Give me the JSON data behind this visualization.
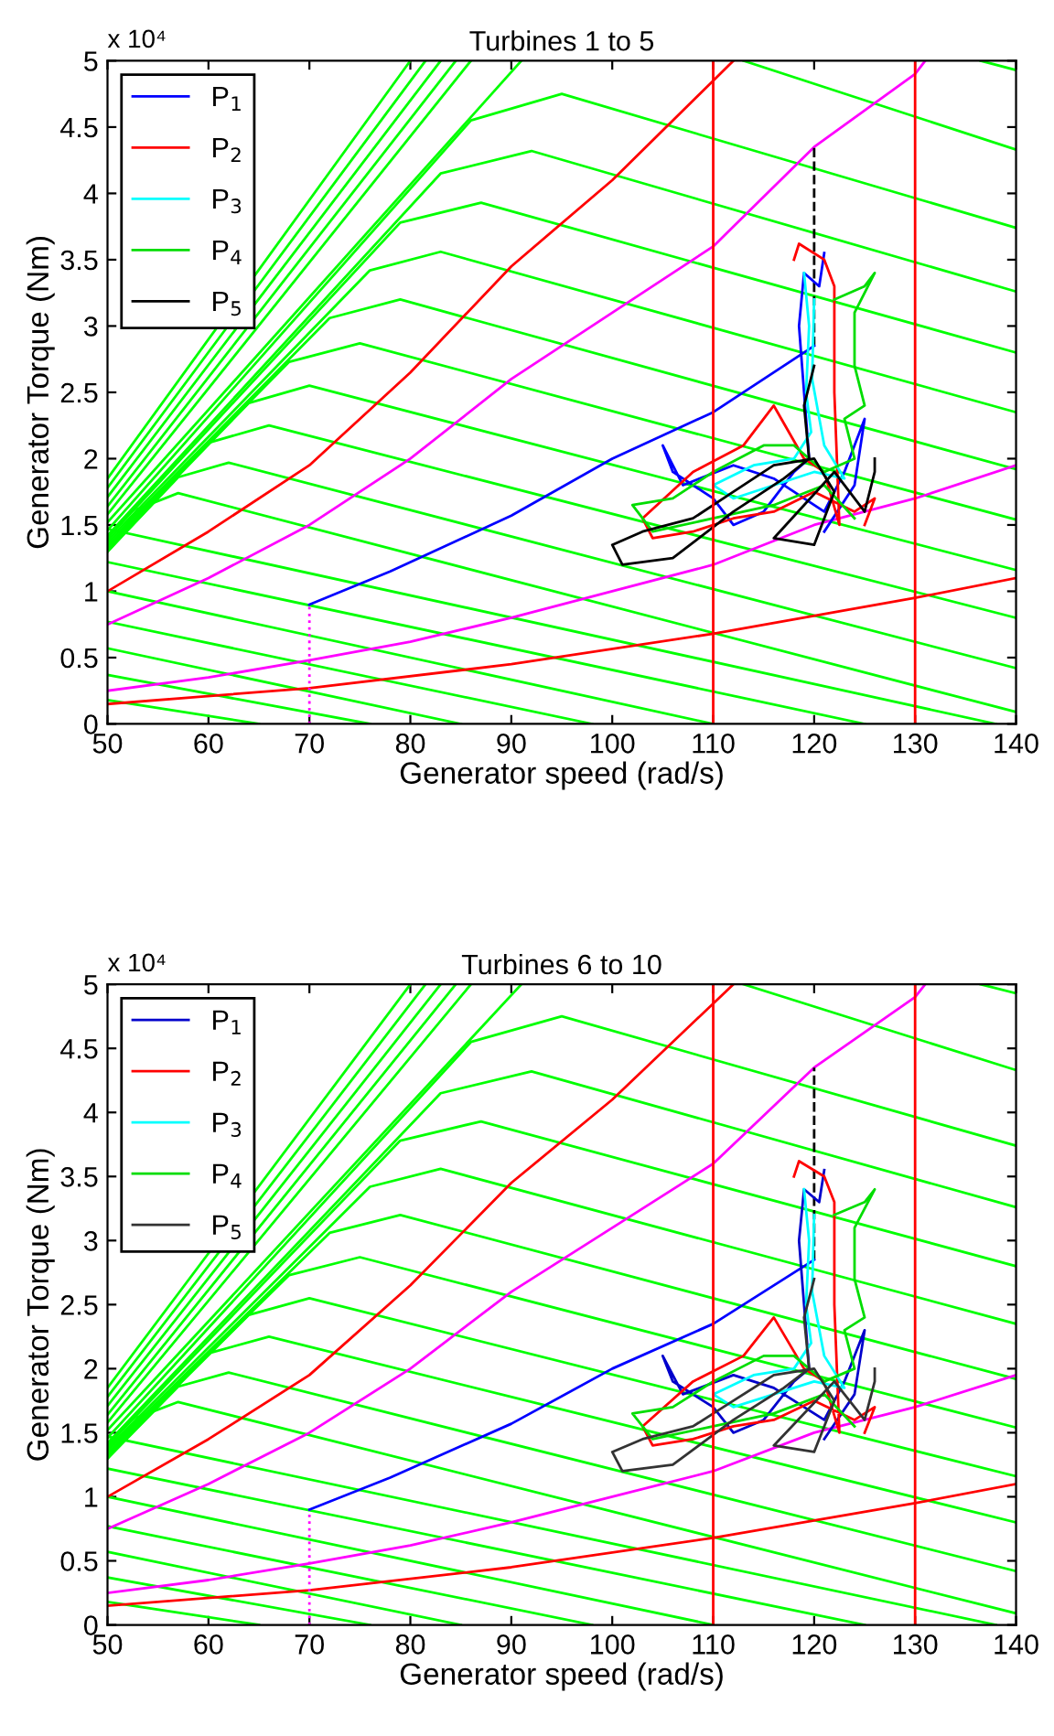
{
  "chart_data": [
    {
      "type": "line",
      "title": "Turbines 1 to 5",
      "xlabel": "Generator speed (rad/s)",
      "ylabel": "Generator Torque (Nm)",
      "annotations": [
        "x 10⁴"
      ],
      "xlim": [
        50,
        140
      ],
      "ylim": [
        0,
        5
      ],
      "xticks": [
        50,
        60,
        70,
        80,
        90,
        100,
        110,
        120,
        130,
        140
      ],
      "yticks": [
        0,
        0.5,
        1,
        1.5,
        2,
        2.5,
        3,
        3.5,
        4,
        4.5,
        5
      ],
      "grid": false,
      "legend": "top left",
      "marker": "none",
      "ref_lines": [
        {
          "axis": "x",
          "value": 110,
          "color": "#ff0000"
        },
        {
          "axis": "x",
          "value": 130,
          "color": "#ff0000"
        }
      ],
      "series": [
        {
          "color": "#00ff00",
          "x": [
            50,
            80
          ],
          "values": [
            1.85,
            5
          ]
        },
        {
          "color": "#00ff00",
          "x": [
            50,
            81.5
          ],
          "values": [
            1.78,
            5
          ]
        },
        {
          "color": "#00ff00",
          "x": [
            50,
            83
          ],
          "values": [
            1.71,
            5
          ]
        },
        {
          "color": "#00ff00",
          "x": [
            50,
            84.5
          ],
          "values": [
            1.64,
            5
          ]
        },
        {
          "color": "#00ff00",
          "x": [
            50,
            86
          ],
          "values": [
            1.58,
            5
          ]
        },
        {
          "color": "#00ff00",
          "x": [
            136.5,
            140
          ],
          "values": [
            5,
            4.93
          ]
        },
        {
          "color": "#00ff00",
          "x": [
            50,
            91
          ],
          "values": [
            1.52,
            5
          ]
        },
        {
          "color": "#00ff00",
          "x": [
            113,
            140
          ],
          "values": [
            5,
            4.33
          ]
        },
        {
          "color": "#00ff00",
          "x": [
            50,
            86,
            95,
            140
          ],
          "values": [
            1.46,
            4.55,
            4.75,
            3.74
          ]
        },
        {
          "color": "#00ff00",
          "x": [
            50,
            83,
            92,
            140
          ],
          "values": [
            1.42,
            4.15,
            4.32,
            3.26
          ]
        },
        {
          "color": "#00ff00",
          "x": [
            50,
            79,
            87,
            140
          ],
          "values": [
            1.4,
            3.78,
            3.93,
            2.8
          ]
        },
        {
          "color": "#00ff00",
          "x": [
            50,
            76,
            83,
            140
          ],
          "values": [
            1.38,
            3.42,
            3.56,
            2.35
          ]
        },
        {
          "color": "#00ff00",
          "x": [
            50,
            72,
            79,
            140
          ],
          "values": [
            1.36,
            3.06,
            3.2,
            1.92
          ]
        },
        {
          "color": "#00ff00",
          "x": [
            50,
            68,
            75,
            140
          ],
          "values": [
            1.34,
            2.73,
            2.87,
            1.54
          ]
        },
        {
          "color": "#00ff00",
          "x": [
            50,
            64,
            70,
            140
          ],
          "values": [
            1.32,
            2.42,
            2.55,
            1.16
          ]
        },
        {
          "color": "#00ff00",
          "x": [
            50,
            60,
            66,
            140
          ],
          "values": [
            1.3,
            2.12,
            2.25,
            0.8
          ]
        },
        {
          "color": "#00ff00",
          "x": [
            50,
            57,
            62,
            140
          ],
          "values": [
            1.3,
            1.86,
            1.97,
            0.42
          ]
        },
        {
          "color": "#00ff00",
          "x": [
            50,
            53,
            57,
            140
          ],
          "values": [
            1.3,
            1.62,
            1.74,
            0.09
          ]
        },
        {
          "color": "#00ff00",
          "x": [
            50,
            138
          ],
          "values": [
            1.47,
            0
          ]
        },
        {
          "color": "#00ff00",
          "x": [
            50,
            125
          ],
          "values": [
            1.22,
            0
          ]
        },
        {
          "color": "#00ff00",
          "x": [
            50,
            110
          ],
          "values": [
            1.0,
            0
          ]
        },
        {
          "color": "#00ff00",
          "x": [
            50,
            98
          ],
          "values": [
            0.77,
            0
          ]
        },
        {
          "color": "#00ff00",
          "x": [
            50,
            85
          ],
          "values": [
            0.57,
            0
          ]
        },
        {
          "color": "#00ff00",
          "x": [
            50,
            76
          ],
          "values": [
            0.37,
            0
          ]
        },
        {
          "color": "#00ff00",
          "x": [
            50,
            65
          ],
          "values": [
            0.18,
            0
          ]
        },
        {
          "color": "#ff0000",
          "x": [
            50,
            60,
            70,
            80,
            90,
            100,
            110,
            112
          ],
          "values": [
            1.0,
            1.45,
            1.95,
            2.65,
            3.45,
            4.1,
            4.85,
            5.0
          ]
        },
        {
          "color": "#ff0000",
          "x": [
            50,
            70,
            90,
            110,
            130,
            140
          ],
          "values": [
            0.15,
            0.27,
            0.45,
            0.68,
            0.95,
            1.1
          ]
        },
        {
          "color": "#ff00ff",
          "x": [
            50,
            60,
            70,
            80,
            90,
            100,
            110,
            120,
            130,
            131
          ],
          "values": [
            0.75,
            1.1,
            1.5,
            2.0,
            2.6,
            3.1,
            3.6,
            4.35,
            4.9,
            5.0
          ]
        },
        {
          "color": "#ff00ff",
          "x": [
            50,
            60,
            70,
            80,
            90,
            100,
            110,
            120,
            130,
            140
          ],
          "values": [
            0.25,
            0.35,
            0.48,
            0.62,
            0.8,
            1.0,
            1.2,
            1.5,
            1.7,
            1.95
          ]
        },
        {
          "color": "#ff00ff",
          "x": [
            70,
            70
          ],
          "values": [
            0,
            0.9
          ],
          "line_style": "dotted"
        },
        {
          "color": "#000000",
          "x": [
            120,
            120
          ],
          "values": [
            2.85,
            4.35
          ],
          "line_style": "dashed"
        },
        {
          "color": "#0000ff",
          "x": [
            70,
            78,
            90,
            100,
            110,
            120
          ],
          "values": [
            0.9,
            1.15,
            1.57,
            2.0,
            2.35,
            2.85
          ]
        },
        {
          "name": "P$_{1}$",
          "color": "#0000ff",
          "x": [
            121,
            120.5,
            119,
            118.5,
            119,
            119.5,
            118,
            115,
            112,
            110,
            106,
            105,
            107,
            112,
            116,
            121,
            123,
            125,
            124,
            121
          ],
          "values": [
            3.55,
            3.3,
            3.4,
            3.0,
            2.5,
            2.0,
            1.9,
            1.6,
            1.5,
            1.7,
            1.9,
            2.1,
            1.8,
            1.95,
            1.85,
            1.6,
            1.9,
            2.3,
            1.8,
            1.45
          ]
        },
        {
          "name": "P$_{2}$",
          "color": "#ff0000",
          "x": [
            118,
            118.5,
            121,
            122,
            122,
            122.5,
            121,
            119,
            116,
            113,
            108,
            103,
            104,
            108,
            112,
            116,
            120,
            124,
            126,
            125
          ],
          "values": [
            3.5,
            3.62,
            3.5,
            3.3,
            2.5,
            1.5,
            1.9,
            2.0,
            2.4,
            2.1,
            1.9,
            1.55,
            1.4,
            1.45,
            1.55,
            1.6,
            1.75,
            1.6,
            1.7,
            1.5
          ]
        },
        {
          "name": "P$_{3}$",
          "color": "#00ffff",
          "x": [
            119,
            119.5,
            119.2,
            119.7,
            118,
            114,
            110,
            112,
            116,
            120,
            123,
            121,
            119.8,
            120
          ],
          "values": [
            3.4,
            3.0,
            2.5,
            2.2,
            2.0,
            1.95,
            1.8,
            1.7,
            1.8,
            1.9,
            1.85,
            2.1,
            2.6,
            3.2
          ]
        },
        {
          "name": "P$_{4}$",
          "color": "#00dd00",
          "x": [
            122,
            125,
            126,
            124,
            124,
            125,
            123,
            124,
            121,
            118,
            115,
            110,
            106,
            102,
            104,
            110,
            116,
            121,
            124
          ],
          "values": [
            3.2,
            3.3,
            3.4,
            3.1,
            2.7,
            2.4,
            2.3,
            2.0,
            1.9,
            2.1,
            2.1,
            1.9,
            1.7,
            1.65,
            1.45,
            1.55,
            1.65,
            1.8,
            1.55
          ]
        },
        {
          "name": "P$_{5}$",
          "color": "#000000",
          "x": [
            120,
            119,
            119.5,
            117,
            112,
            106,
            101,
            100,
            103,
            108,
            112,
            116,
            120,
            122,
            120,
            116,
            122,
            125,
            126,
            126
          ],
          "values": [
            2.7,
            2.4,
            2.0,
            1.85,
            1.6,
            1.25,
            1.2,
            1.35,
            1.45,
            1.55,
            1.75,
            1.95,
            2.0,
            1.75,
            1.35,
            1.4,
            1.9,
            1.6,
            1.9,
            2.0
          ]
        }
      ]
    },
    {
      "type": "line",
      "title": "Turbines 6 to 10",
      "xlabel": "Generator speed (rad/s)",
      "ylabel": "Generator Torque (Nm)",
      "annotations": [
        "x 10⁴"
      ],
      "xlim": [
        50,
        140
      ],
      "ylim": [
        0,
        5
      ],
      "xticks": [
        50,
        60,
        70,
        80,
        90,
        100,
        110,
        120,
        130,
        140
      ],
      "yticks": [
        0,
        0.5,
        1,
        1.5,
        2,
        2.5,
        3,
        3.5,
        4,
        4.5,
        5
      ],
      "grid": false,
      "legend": "top left",
      "marker": "none",
      "ref_lines": [
        {
          "axis": "x",
          "value": 110,
          "color": "#ff0000"
        },
        {
          "axis": "x",
          "value": 130,
          "color": "#ff0000"
        }
      ],
      "series": [
        {
          "color": "#00ff00",
          "x": [
            50,
            80
          ],
          "values": [
            1.85,
            5
          ]
        },
        {
          "color": "#00ff00",
          "x": [
            50,
            81.5
          ],
          "values": [
            1.78,
            5
          ]
        },
        {
          "color": "#00ff00",
          "x": [
            50,
            83
          ],
          "values": [
            1.71,
            5
          ]
        },
        {
          "color": "#00ff00",
          "x": [
            50,
            84.5
          ],
          "values": [
            1.64,
            5
          ]
        },
        {
          "color": "#00ff00",
          "x": [
            50,
            86
          ],
          "values": [
            1.58,
            5
          ]
        },
        {
          "color": "#00ff00",
          "x": [
            136.5,
            140
          ],
          "values": [
            5,
            4.93
          ]
        },
        {
          "color": "#00ff00",
          "x": [
            50,
            91
          ],
          "values": [
            1.52,
            5
          ]
        },
        {
          "color": "#00ff00",
          "x": [
            113,
            140
          ],
          "values": [
            5,
            4.33
          ]
        },
        {
          "color": "#00ff00",
          "x": [
            50,
            86,
            95,
            140
          ],
          "values": [
            1.46,
            4.55,
            4.75,
            3.74
          ]
        },
        {
          "color": "#00ff00",
          "x": [
            50,
            83,
            92,
            140
          ],
          "values": [
            1.42,
            4.15,
            4.32,
            3.26
          ]
        },
        {
          "color": "#00ff00",
          "x": [
            50,
            79,
            87,
            140
          ],
          "values": [
            1.4,
            3.78,
            3.93,
            2.8
          ]
        },
        {
          "color": "#00ff00",
          "x": [
            50,
            76,
            83,
            140
          ],
          "values": [
            1.38,
            3.42,
            3.56,
            2.35
          ]
        },
        {
          "color": "#00ff00",
          "x": [
            50,
            72,
            79,
            140
          ],
          "values": [
            1.36,
            3.06,
            3.2,
            1.92
          ]
        },
        {
          "color": "#00ff00",
          "x": [
            50,
            68,
            75,
            140
          ],
          "values": [
            1.34,
            2.73,
            2.87,
            1.54
          ]
        },
        {
          "color": "#00ff00",
          "x": [
            50,
            64,
            70,
            140
          ],
          "values": [
            1.32,
            2.42,
            2.55,
            1.16
          ]
        },
        {
          "color": "#00ff00",
          "x": [
            50,
            60,
            66,
            140
          ],
          "values": [
            1.3,
            2.12,
            2.25,
            0.8
          ]
        },
        {
          "color": "#00ff00",
          "x": [
            50,
            57,
            62,
            140
          ],
          "values": [
            1.3,
            1.86,
            1.97,
            0.42
          ]
        },
        {
          "color": "#00ff00",
          "x": [
            50,
            53,
            57,
            140
          ],
          "values": [
            1.3,
            1.62,
            1.74,
            0.09
          ]
        },
        {
          "color": "#00ff00",
          "x": [
            50,
            138
          ],
          "values": [
            1.47,
            0
          ]
        },
        {
          "color": "#00ff00",
          "x": [
            50,
            125
          ],
          "values": [
            1.22,
            0
          ]
        },
        {
          "color": "#00ff00",
          "x": [
            50,
            110
          ],
          "values": [
            1.0,
            0
          ]
        },
        {
          "color": "#00ff00",
          "x": [
            50,
            98
          ],
          "values": [
            0.77,
            0
          ]
        },
        {
          "color": "#00ff00",
          "x": [
            50,
            85
          ],
          "values": [
            0.57,
            0
          ]
        },
        {
          "color": "#00ff00",
          "x": [
            50,
            76
          ],
          "values": [
            0.37,
            0
          ]
        },
        {
          "color": "#00ff00",
          "x": [
            50,
            65
          ],
          "values": [
            0.18,
            0
          ]
        },
        {
          "color": "#ff0000",
          "x": [
            50,
            60,
            70,
            80,
            90,
            100,
            110,
            112
          ],
          "values": [
            1.0,
            1.45,
            1.95,
            2.65,
            3.45,
            4.1,
            4.85,
            5.0
          ]
        },
        {
          "color": "#ff0000",
          "x": [
            50,
            70,
            90,
            110,
            130,
            140
          ],
          "values": [
            0.15,
            0.27,
            0.45,
            0.68,
            0.95,
            1.1
          ]
        },
        {
          "color": "#ff00ff",
          "x": [
            50,
            60,
            70,
            80,
            90,
            100,
            110,
            120,
            130,
            131
          ],
          "values": [
            0.75,
            1.1,
            1.5,
            2.0,
            2.6,
            3.1,
            3.6,
            4.35,
            4.9,
            5.0
          ]
        },
        {
          "color": "#ff00ff",
          "x": [
            50,
            60,
            70,
            80,
            90,
            100,
            110,
            120,
            130,
            140
          ],
          "values": [
            0.25,
            0.35,
            0.48,
            0.62,
            0.8,
            1.0,
            1.2,
            1.5,
            1.7,
            1.95
          ]
        },
        {
          "color": "#ff00ff",
          "x": [
            70,
            70
          ],
          "values": [
            0,
            0.9
          ],
          "line_style": "dotted"
        },
        {
          "color": "#000000",
          "x": [
            120,
            120
          ],
          "values": [
            2.85,
            4.35
          ],
          "line_style": "dashed"
        },
        {
          "color": "#0000ff",
          "x": [
            70,
            78,
            90,
            100,
            110,
            120
          ],
          "values": [
            0.9,
            1.15,
            1.57,
            2.0,
            2.35,
            2.85
          ]
        },
        {
          "name": "P$_{1}$",
          "color": "#0000cc",
          "x": [
            121,
            120.5,
            119,
            118.5,
            119,
            119.5,
            118,
            115,
            112,
            110,
            106,
            105,
            107,
            112,
            116,
            121,
            123,
            125,
            124,
            121
          ],
          "values": [
            3.55,
            3.3,
            3.4,
            3.0,
            2.5,
            2.0,
            1.9,
            1.6,
            1.5,
            1.7,
            1.9,
            2.1,
            1.8,
            1.95,
            1.85,
            1.6,
            1.9,
            2.3,
            1.8,
            1.45
          ]
        },
        {
          "name": "P$_{2}$",
          "color": "#ff0000",
          "x": [
            118,
            118.5,
            121,
            122,
            122,
            122.5,
            121,
            119,
            116,
            113,
            108,
            103,
            104,
            108,
            112,
            116,
            120,
            124,
            126,
            125
          ],
          "values": [
            3.5,
            3.62,
            3.5,
            3.3,
            2.5,
            1.5,
            1.9,
            2.0,
            2.4,
            2.1,
            1.9,
            1.55,
            1.4,
            1.45,
            1.55,
            1.6,
            1.75,
            1.6,
            1.7,
            1.5
          ]
        },
        {
          "name": "P$_{3}$",
          "color": "#00ffff",
          "x": [
            119,
            119.5,
            119.2,
            119.7,
            118,
            114,
            110,
            112,
            116,
            120,
            123,
            121,
            119.8,
            120
          ],
          "values": [
            3.4,
            3.0,
            2.5,
            2.2,
            2.0,
            1.95,
            1.8,
            1.7,
            1.8,
            1.9,
            1.85,
            2.1,
            2.6,
            3.2
          ]
        },
        {
          "name": "P$_{4}$",
          "color": "#00dd00",
          "x": [
            122,
            125,
            126,
            124,
            124,
            125,
            123,
            124,
            121,
            118,
            115,
            110,
            106,
            102,
            104,
            110,
            116,
            121,
            124
          ],
          "values": [
            3.2,
            3.3,
            3.4,
            3.1,
            2.7,
            2.4,
            2.3,
            2.0,
            1.9,
            2.1,
            2.1,
            1.9,
            1.7,
            1.65,
            1.45,
            1.55,
            1.65,
            1.8,
            1.55
          ]
        },
        {
          "name": "P$_{5}$",
          "color": "#333333",
          "x": [
            120,
            119,
            119.5,
            117,
            112,
            106,
            101,
            100,
            103,
            108,
            112,
            116,
            120,
            122,
            120,
            116,
            122,
            125,
            126,
            126
          ],
          "values": [
            2.7,
            2.4,
            2.0,
            1.85,
            1.6,
            1.25,
            1.2,
            1.35,
            1.45,
            1.55,
            1.75,
            1.95,
            2.0,
            1.75,
            1.35,
            1.4,
            1.9,
            1.6,
            1.9,
            2.0
          ]
        }
      ]
    }
  ]
}
